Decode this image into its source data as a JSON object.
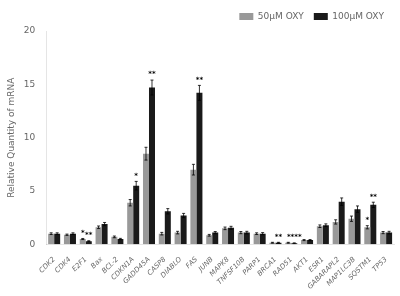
{
  "chart_data": {
    "type": "bar",
    "categories": [
      "CDK2",
      "CDK4",
      "E2F1",
      "Bax",
      "BCL-2",
      "CDKN1A",
      "GADD45A",
      "CASP8",
      "DIABLO",
      "FAS",
      "JUNB",
      "MAPK8",
      "TNFSF10B",
      "PARP1",
      "BRCA1",
      "RAD51",
      "AKT1",
      "ESR1",
      "GABARAPL2",
      "MAP1LC3B",
      "SQSTM1",
      "TP53"
    ],
    "series": [
      {
        "name": "50μM OXY",
        "color": "#999999",
        "values": [
          1.0,
          0.9,
          0.5,
          1.6,
          0.7,
          3.9,
          8.5,
          1.0,
          1.1,
          7.0,
          0.85,
          1.5,
          1.1,
          1.0,
          0.15,
          0.15,
          0.4,
          1.7,
          2.1,
          2.4,
          1.6,
          1.1
        ],
        "errors": [
          0.08,
          0.06,
          0.05,
          0.12,
          0.08,
          0.3,
          0.6,
          0.12,
          0.12,
          0.5,
          0.08,
          0.12,
          0.1,
          0.08,
          0.04,
          0.04,
          0.05,
          0.12,
          0.2,
          0.25,
          0.15,
          0.1
        ],
        "significance": [
          null,
          null,
          "*",
          null,
          null,
          null,
          null,
          null,
          null,
          null,
          null,
          null,
          null,
          null,
          null,
          null,
          null,
          null,
          null,
          null,
          "*",
          null
        ]
      },
      {
        "name": "100μM OXY",
        "color": "#1a1a1a",
        "values": [
          1.0,
          1.0,
          0.3,
          1.9,
          0.5,
          5.5,
          14.7,
          3.1,
          2.7,
          14.2,
          1.1,
          1.55,
          1.1,
          1.0,
          0.15,
          0.1,
          0.4,
          1.8,
          4.0,
          3.3,
          3.7,
          1.1
        ],
        "errors": [
          0.08,
          0.08,
          0.04,
          0.15,
          0.06,
          0.4,
          0.7,
          0.25,
          0.2,
          0.7,
          0.1,
          0.14,
          0.12,
          0.1,
          0.04,
          0.04,
          0.05,
          0.12,
          0.35,
          0.3,
          0.25,
          0.12
        ],
        "significance": [
          null,
          null,
          "**",
          null,
          null,
          "*",
          "**",
          null,
          null,
          "**",
          null,
          null,
          null,
          null,
          "**",
          "****",
          null,
          null,
          null,
          null,
          "**",
          null
        ]
      }
    ],
    "ylabel": "Relative Quantity of mRNA",
    "ylim": [
      0,
      20
    ],
    "yticks": [
      0,
      5,
      10,
      15,
      20
    ],
    "grid": false,
    "legend": "upper right"
  }
}
